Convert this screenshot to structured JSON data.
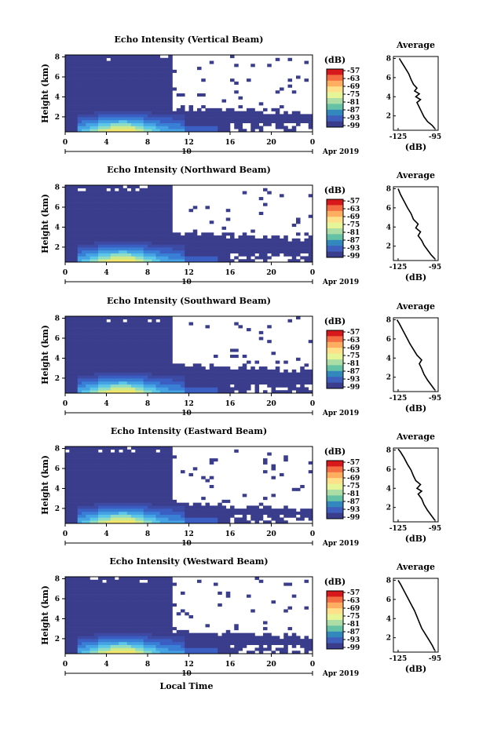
{
  "figure": {
    "xlabel": "Local Time",
    "date_label": "Apr 2019",
    "date_tick": "10"
  },
  "chart_data": [
    {
      "type": "heatmap",
      "title": "Echo Intensity (Vertical Beam)",
      "ylabel": "Height (km)",
      "xlabel": "Local Time",
      "x_ticks": [
        "0",
        "4",
        "8",
        "12",
        "16",
        "20",
        "0"
      ],
      "y_ticks": [
        "2",
        "4",
        "6",
        "8"
      ],
      "ylim": [
        0.5,
        8.2
      ],
      "colorbar": {
        "label": "(dB)",
        "ticks": [
          "-57",
          "-63",
          "-69",
          "-75",
          "-81",
          "-87",
          "-93",
          "-99"
        ]
      },
      "clear_above_km_after_11h": 3.0,
      "profile": {
        "title": "Average",
        "xlabel": "(dB)",
        "x_ticks": [
          "-125",
          "-95"
        ],
        "y_ticks": [
          "2",
          "4",
          "6",
          "8"
        ],
        "xlim": [
          -130,
          -92
        ],
        "ylim": [
          0.5,
          8.2
        ],
        "points": [
          [
            -95,
            0.7
          ],
          [
            -97,
            1.0
          ],
          [
            -101,
            1.4
          ],
          [
            -104,
            1.9
          ],
          [
            -106,
            2.4
          ],
          [
            -108,
            2.9
          ],
          [
            -110,
            3.4
          ],
          [
            -107,
            3.7
          ],
          [
            -111,
            4.0
          ],
          [
            -108,
            4.3
          ],
          [
            -112,
            4.6
          ],
          [
            -110,
            4.9
          ],
          [
            -113,
            5.3
          ],
          [
            -115,
            5.8
          ],
          [
            -117,
            6.4
          ],
          [
            -120,
            7.0
          ],
          [
            -123,
            7.6
          ],
          [
            -125,
            8.0
          ]
        ]
      }
    },
    {
      "type": "heatmap",
      "title": "Echo Intensity (Northward Beam)",
      "ylabel": "Height (km)",
      "xlabel": "Local Time",
      "x_ticks": [
        "0",
        "4",
        "8",
        "12",
        "16",
        "20",
        "0"
      ],
      "y_ticks": [
        "2",
        "4",
        "6",
        "8"
      ],
      "ylim": [
        0.5,
        8.2
      ],
      "colorbar": {
        "label": "(dB)",
        "ticks": [
          "-57",
          "-63",
          "-69",
          "-75",
          "-81",
          "-87",
          "-93",
          "-99"
        ]
      },
      "clear_above_km_after_11h": 3.5,
      "profile": {
        "title": "Average",
        "xlabel": "(dB)",
        "x_ticks": [
          "-125",
          "-95"
        ],
        "y_ticks": [
          "2",
          "4",
          "6",
          "8"
        ],
        "xlim": [
          -130,
          -92
        ],
        "ylim": [
          0.5,
          8.2
        ],
        "points": [
          [
            -95,
            0.7
          ],
          [
            -98,
            1.1
          ],
          [
            -101,
            1.6
          ],
          [
            -104,
            2.1
          ],
          [
            -106,
            2.6
          ],
          [
            -109,
            3.1
          ],
          [
            -107,
            3.5
          ],
          [
            -111,
            3.9
          ],
          [
            -109,
            4.3
          ],
          [
            -113,
            4.8
          ],
          [
            -115,
            5.4
          ],
          [
            -118,
            6.0
          ],
          [
            -121,
            6.7
          ],
          [
            -124,
            7.4
          ],
          [
            -126,
            8.0
          ]
        ]
      }
    },
    {
      "type": "heatmap",
      "title": "Echo Intensity (Southward Beam)",
      "ylabel": "Height (km)",
      "xlabel": "Local Time",
      "x_ticks": [
        "0",
        "4",
        "8",
        "12",
        "16",
        "20",
        "0"
      ],
      "y_ticks": [
        "2",
        "4",
        "6",
        "8"
      ],
      "ylim": [
        0.5,
        8.2
      ],
      "colorbar": {
        "label": "(dB)",
        "ticks": [
          "-57",
          "-63",
          "-69",
          "-75",
          "-81",
          "-87",
          "-93",
          "-99"
        ]
      },
      "clear_above_km_after_11h": 3.4,
      "profile": {
        "title": "Average",
        "xlabel": "(dB)",
        "x_ticks": [
          "-125",
          "-95"
        ],
        "y_ticks": [
          "2",
          "4",
          "6",
          "8"
        ],
        "xlim": [
          -130,
          -92
        ],
        "ylim": [
          0.5,
          8.2
        ],
        "points": [
          [
            -95,
            0.7
          ],
          [
            -98,
            1.2
          ],
          [
            -101,
            1.7
          ],
          [
            -104,
            2.3
          ],
          [
            -106,
            2.9
          ],
          [
            -108,
            3.4
          ],
          [
            -106,
            3.8
          ],
          [
            -110,
            4.3
          ],
          [
            -113,
            4.9
          ],
          [
            -116,
            5.5
          ],
          [
            -119,
            6.2
          ],
          [
            -122,
            6.9
          ],
          [
            -125,
            7.6
          ],
          [
            -127,
            8.0
          ]
        ]
      }
    },
    {
      "type": "heatmap",
      "title": "Echo Intensity (Eastward Beam)",
      "ylabel": "Height (km)",
      "xlabel": "Local Time",
      "x_ticks": [
        "0",
        "4",
        "8",
        "12",
        "16",
        "20",
        "0"
      ],
      "y_ticks": [
        "2",
        "4",
        "6",
        "8"
      ],
      "ylim": [
        0.5,
        8.2
      ],
      "colorbar": {
        "label": "(dB)",
        "ticks": [
          "-57",
          "-63",
          "-69",
          "-75",
          "-81",
          "-87",
          "-93",
          "-99"
        ]
      },
      "clear_above_km_after_11h": 2.6,
      "profile": {
        "title": "Average",
        "xlabel": "(dB)",
        "x_ticks": [
          "-125",
          "-95"
        ],
        "y_ticks": [
          "2",
          "4",
          "6",
          "8"
        ],
        "xlim": [
          -130,
          -92
        ],
        "ylim": [
          0.5,
          8.2
        ],
        "points": [
          [
            -95,
            0.7
          ],
          [
            -98,
            1.2
          ],
          [
            -101,
            1.7
          ],
          [
            -104,
            2.3
          ],
          [
            -106,
            2.9
          ],
          [
            -109,
            3.4
          ],
          [
            -106,
            3.7
          ],
          [
            -110,
            4.0
          ],
          [
            -107,
            4.4
          ],
          [
            -111,
            4.8
          ],
          [
            -113,
            5.3
          ],
          [
            -115,
            5.9
          ],
          [
            -118,
            6.5
          ],
          [
            -121,
            7.2
          ],
          [
            -124,
            7.8
          ],
          [
            -126,
            8.1
          ]
        ]
      }
    },
    {
      "type": "heatmap",
      "title": "Echo Intensity (Westward Beam)",
      "ylabel": "Height (km)",
      "xlabel": "Local Time",
      "x_ticks": [
        "0",
        "4",
        "8",
        "12",
        "16",
        "20",
        "0"
      ],
      "y_ticks": [
        "2",
        "4",
        "6",
        "8"
      ],
      "ylim": [
        0.5,
        8.2
      ],
      "colorbar": {
        "label": "(dB)",
        "ticks": [
          "-57",
          "-63",
          "-69",
          "-75",
          "-81",
          "-87",
          "-93",
          "-99"
        ]
      },
      "clear_above_km_after_11h": 2.8,
      "profile": {
        "title": "Average",
        "xlabel": "(dB)",
        "x_ticks": [
          "-125",
          "-95"
        ],
        "y_ticks": [
          "2",
          "4",
          "6",
          "8"
        ],
        "xlim": [
          -130,
          -92
        ],
        "ylim": [
          0.5,
          8.2
        ],
        "points": [
          [
            -95,
            0.7
          ],
          [
            -97,
            1.2
          ],
          [
            -100,
            1.8
          ],
          [
            -103,
            2.4
          ],
          [
            -106,
            3.0
          ],
          [
            -108,
            3.6
          ],
          [
            -110,
            4.2
          ],
          [
            -112,
            4.8
          ],
          [
            -115,
            5.5
          ],
          [
            -118,
            6.2
          ],
          [
            -121,
            6.9
          ],
          [
            -124,
            7.6
          ],
          [
            -126,
            8.0
          ]
        ]
      }
    }
  ],
  "colors": {
    "background_echo": "#3a3d8c",
    "frame": "#000000"
  }
}
